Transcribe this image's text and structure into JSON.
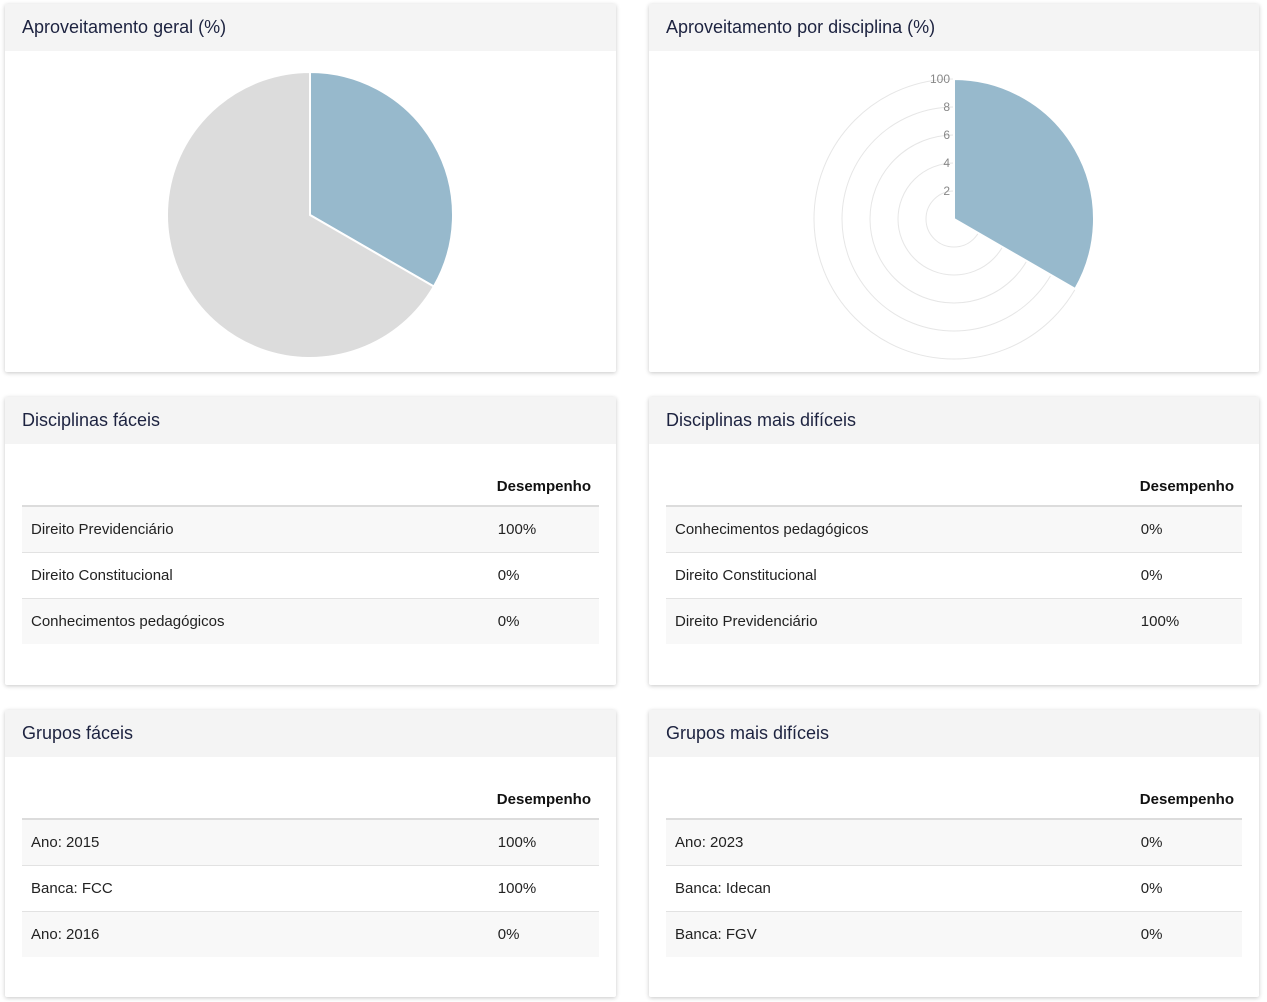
{
  "cards": {
    "overall": {
      "title": "Aproveitamento geral (%)"
    },
    "by_subject": {
      "title": "Aproveitamento por disciplina (%)"
    },
    "easy_subjects": {
      "title": "Disciplinas fáceis",
      "header": {
        "name": "",
        "perf": "Desempenho"
      },
      "rows": [
        {
          "name": "Direito Previdenciário",
          "perf": "100%"
        },
        {
          "name": "Direito Constitucional",
          "perf": "0%"
        },
        {
          "name": "Conhecimentos pedagógicos",
          "perf": "0%"
        }
      ]
    },
    "hard_subjects": {
      "title": "Disciplinas mais difíceis",
      "header": {
        "name": "",
        "perf": "Desempenho"
      },
      "rows": [
        {
          "name": "Conhecimentos pedagógicos",
          "perf": "0%"
        },
        {
          "name": "Direito Constitucional",
          "perf": "0%"
        },
        {
          "name": "Direito Previdenciário",
          "perf": "100%"
        }
      ]
    },
    "easy_groups": {
      "title": "Grupos fáceis",
      "header": {
        "name": "",
        "perf": "Desempenho"
      },
      "rows": [
        {
          "name": "Ano: 2015",
          "perf": "100%"
        },
        {
          "name": "Banca: FCC",
          "perf": "100%"
        },
        {
          "name": "Ano: 2016",
          "perf": "0%"
        }
      ]
    },
    "hard_groups": {
      "title": "Grupos mais difíceis",
      "header": {
        "name": "",
        "perf": "Desempenho"
      },
      "rows": [
        {
          "name": "Ano: 2023",
          "perf": "0%"
        },
        {
          "name": "Banca: Idecan",
          "perf": "0%"
        },
        {
          "name": "Banca: FGV",
          "perf": "0%"
        }
      ]
    }
  },
  "chart_data": [
    {
      "type": "pie",
      "title": "Aproveitamento geral (%)",
      "slices": [
        {
          "value": 33.33,
          "color": "#97b9cc"
        },
        {
          "value": 66.67,
          "color": "#dcdcdc"
        }
      ]
    },
    {
      "type": "polar-area",
      "title": "Aproveitamento por disciplina (%)",
      "r_ticks": [
        "2",
        "4",
        "6",
        "8",
        "100"
      ],
      "r_max": 100,
      "slices": [
        {
          "value": 100,
          "color": "#97b9cc"
        },
        {
          "value": 0,
          "color": "#97b9cc"
        },
        {
          "value": 0,
          "color": "#97b9cc"
        }
      ]
    }
  ]
}
